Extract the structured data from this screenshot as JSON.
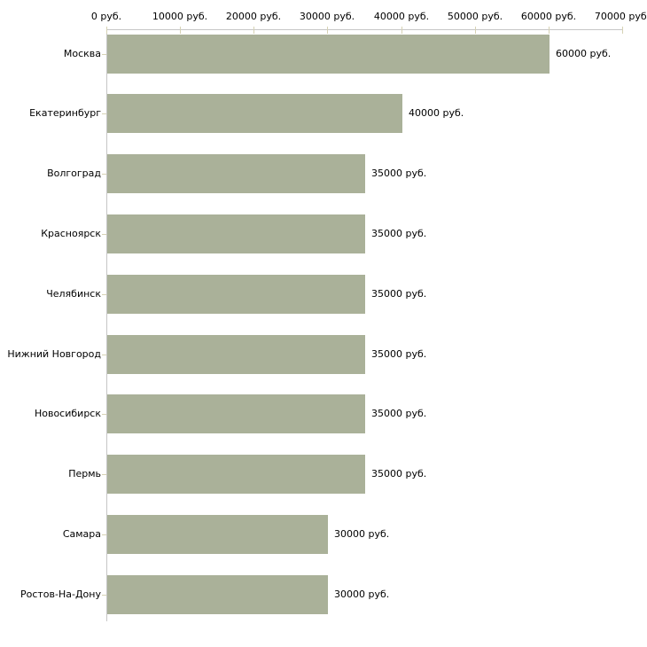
{
  "chart_data": {
    "type": "bar",
    "orientation": "horizontal",
    "title": "",
    "categories": [
      "Москва",
      "Екатеринбург",
      "Волгоград",
      "Красноярск",
      "Челябинск",
      "Нижний Новгород",
      "Новосибирск",
      "Пермь",
      "Самара",
      "Ростов-На-Дону"
    ],
    "values": [
      60000,
      40000,
      35000,
      35000,
      35000,
      35000,
      35000,
      35000,
      30000,
      30000
    ],
    "value_labels": [
      "60000 руб.",
      "40000 руб.",
      "35000 руб.",
      "35000 руб.",
      "35000 руб.",
      "35000 руб.",
      "35000 руб.",
      "35000 руб.",
      "30000 руб.",
      "30000 руб."
    ],
    "x_axis": {
      "position": "top",
      "min": 0,
      "max": 70000,
      "ticks": [
        0,
        10000,
        20000,
        30000,
        40000,
        50000,
        60000,
        70000
      ],
      "tick_labels": [
        "0 руб.",
        "10000 руб.",
        "20000 руб.",
        "30000 руб.",
        "40000 руб.",
        "50000 руб.",
        "60000 руб.",
        "70000 руб."
      ]
    },
    "grid": false,
    "legend": false,
    "colors": {
      "bar": "#aab199",
      "axis": "#c6c6c6",
      "tick": "#d6d2b4",
      "text": "#000000",
      "background": "#ffffff"
    }
  }
}
